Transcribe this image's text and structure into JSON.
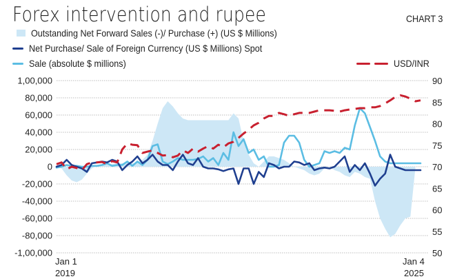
{
  "header": {
    "title": "Forex intervention and rupee",
    "chart_label": "CHART 3"
  },
  "legend": {
    "forward": "Outstanding Net Forward Sales (-)/ Purchase (+) (US $ Millions)",
    "net_spot": "Net Purchase/ Sale of Foreign Currency (US $ Millions) Spot",
    "sale": "Sale (absolute $ millions)",
    "usdinr": "USD/INR"
  },
  "colors": {
    "forward": "#cde7f6",
    "net_spot": "#1f3f8f",
    "sale": "#5bbde3",
    "usdinr": "#c8202f",
    "grid": "#bdbdbd"
  },
  "chart_data": {
    "type": "line",
    "title": "Forex intervention and rupee",
    "x_start_label": [
      "Jan 1",
      "2019"
    ],
    "x_end_label": [
      "Jan 4",
      "2025"
    ],
    "x_note": "monthly index, 0 = Jan 2019, 72 = Jan 2025",
    "left_axis": {
      "ylim": [
        -100000,
        100000
      ],
      "ticks": [
        100000,
        80000,
        60000,
        40000,
        20000,
        0,
        -20000,
        -40000,
        -60000,
        -80000,
        -100000
      ],
      "tick_labels": [
        "1,00,000",
        "80,000",
        "60,000",
        "40,000",
        "20,000",
        "0",
        "-20,000",
        "-40,000",
        "-60,000",
        "-80,000",
        "-1,00,000"
      ]
    },
    "right_axis": {
      "ylim": [
        50,
        90
      ],
      "ticks": [
        90,
        85,
        80,
        75,
        70,
        65,
        60,
        55,
        50
      ],
      "tick_labels": [
        "90",
        "85",
        "80",
        "75",
        "70",
        "65",
        "60",
        "55",
        "50"
      ]
    },
    "grid": true,
    "series": [
      {
        "name": "Outstanding Net Forward Sales (-)/ Purchase (+) (US $ Millions)",
        "kind": "area",
        "axis": "left",
        "values": [
          0,
          -2000,
          -10000,
          -16000,
          -18000,
          -15000,
          -8000,
          -2000,
          2000,
          3000,
          3000,
          3000,
          4000,
          4000,
          4000,
          4000,
          5000,
          8000,
          14000,
          30000,
          50000,
          68000,
          76000,
          70000,
          62000,
          56000,
          54000,
          54000,
          54000,
          54000,
          54000,
          54000,
          54000,
          54000,
          54000,
          62000,
          56000,
          30000,
          14000,
          4000,
          0,
          6000,
          12000,
          12000,
          10000,
          8000,
          4000,
          0,
          -2000,
          -4000,
          -8000,
          -10000,
          -8000,
          -2000,
          0,
          -4000,
          -6000,
          -10000,
          -12000,
          -6000,
          -8000,
          -12000,
          -14000,
          -40000,
          -60000,
          -72000,
          -82000,
          -78000,
          -68000,
          -60000,
          -58000,
          0,
          0
        ]
      },
      {
        "name": "Net Purchase/ Sale of Foreign Currency (US $ Millions) Spot",
        "kind": "line",
        "axis": "left",
        "values": [
          0,
          2000,
          8000,
          2000,
          0,
          -2000,
          -6000,
          4000,
          5000,
          6000,
          5000,
          8000,
          6000,
          -4000,
          2000,
          6000,
          12000,
          4000,
          8000,
          14000,
          6000,
          2000,
          2000,
          -4000,
          6000,
          14000,
          4000,
          2000,
          10000,
          0,
          -2000,
          -2000,
          -3000,
          -5000,
          -3000,
          -2000,
          -20000,
          -2000,
          -2000,
          -20000,
          -6000,
          -12000,
          4000,
          2000,
          -2000,
          0,
          0,
          6000,
          5000,
          2000,
          4000,
          -4000,
          -2000,
          -1000,
          -2000,
          0,
          6000,
          12000,
          -6000,
          2000,
          -4000,
          4000,
          -8000,
          -22000,
          -14000,
          -8000,
          14000,
          0,
          -2000,
          -4000,
          -4000,
          -4000,
          -4000
        ]
      },
      {
        "name": "Sale (absolute $ millions)",
        "kind": "line",
        "axis": "left",
        "values": [
          -1000,
          0,
          2000,
          1000,
          1000,
          0,
          0,
          1000,
          1000,
          2000,
          4000,
          1000,
          2000,
          2000,
          6000,
          1000,
          6000,
          2000,
          8000,
          24000,
          26000,
          6000,
          3000,
          6000,
          10000,
          8000,
          8000,
          8000,
          9000,
          12000,
          6000,
          10000,
          2000,
          16000,
          8000,
          40000,
          24000,
          32000,
          16000,
          20000,
          8000,
          12000,
          0,
          0,
          2000,
          28000,
          36000,
          36000,
          28000,
          8000,
          0,
          2000,
          4000,
          18000,
          16000,
          18000,
          16000,
          22000,
          20000,
          48000,
          68000,
          62000,
          46000,
          30000,
          12000,
          6000,
          4000,
          4000,
          4000,
          4000,
          4000,
          4000,
          4000
        ]
      },
      {
        "name": "USD/INR",
        "kind": "dashed-line",
        "axis": "right",
        "values": [
          70.6,
          71.0,
          69.4,
          70.0,
          69.7,
          69.2,
          70.6,
          71.0,
          71.0,
          71.1,
          70.6,
          71.3,
          71.0,
          74.0,
          75.4,
          75.1,
          75.0,
          73.2,
          73.5,
          73.8,
          73.2,
          72.6,
          72.7,
          72.2,
          72.6,
          73.8,
          73.2,
          74.2,
          73.5,
          74.2,
          74.8,
          74.2,
          75.1,
          74.5,
          75.4,
          75.8,
          76.7,
          77.7,
          78.6,
          79.6,
          80.2,
          81.2,
          81.8,
          81.8,
          82.5,
          82.2,
          81.8,
          82.2,
          82.5,
          82.5,
          82.5,
          82.8,
          83.1,
          83.1,
          83.1,
          83.0,
          82.8,
          83.1,
          83.3,
          83.4,
          83.6,
          83.6,
          83.8,
          83.8,
          84.1,
          84.7,
          85.4,
          86.2,
          86.6,
          86.3,
          85.8,
          85.2,
          85.4
        ]
      }
    ]
  }
}
